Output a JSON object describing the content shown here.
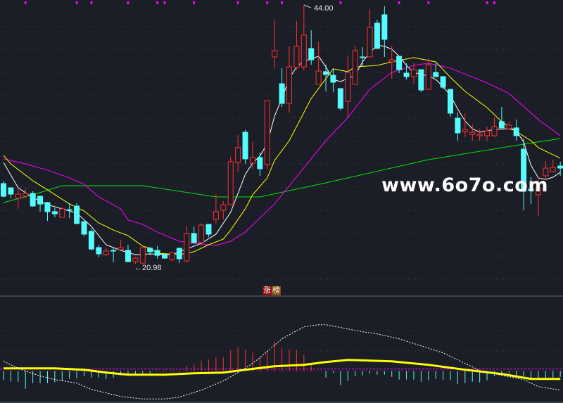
{
  "chart_data": [
    {
      "type": "candlestick",
      "title": "",
      "colors": {
        "up": "#ff3030",
        "down": "#54fcfc",
        "ma5": "#ffffff",
        "ma10": "#ffff00",
        "ma20": "#ff00ff",
        "ma60": "#00e600",
        "background": "#1b1e27"
      },
      "ylim": [
        20,
        44.4
      ],
      "grid": "horizontal dotted",
      "high_label": "44.00",
      "low_label": "←20.98",
      "high_index": 41,
      "low_index": 18,
      "badge": [
        "涨",
        "榜"
      ],
      "signal_markers": [
        3,
        10,
        12,
        17,
        21,
        22,
        26,
        32,
        36,
        38,
        46,
        54,
        58,
        66,
        67
      ],
      "ohlc": [
        [
          28.13,
          28.38,
          26.88,
          27.0
        ],
        [
          27.75,
          27.75,
          26.81,
          27.19
        ],
        [
          26.81,
          27.63,
          25.88,
          27.19
        ],
        [
          27.0,
          27.69,
          26.81,
          27.25
        ],
        [
          27.25,
          27.44,
          26.06,
          26.13
        ],
        [
          27.0,
          27.06,
          25.63,
          26.31
        ],
        [
          26.44,
          26.5,
          24.81,
          25.63
        ],
        [
          25.63,
          25.94,
          25.13,
          25.44
        ],
        [
          25.13,
          26.06,
          25.13,
          25.88
        ],
        [
          25.81,
          26.38,
          25.06,
          25.75
        ],
        [
          26.13,
          26.38,
          24.57,
          24.57
        ],
        [
          24.75,
          24.75,
          23.44,
          23.63
        ],
        [
          23.88,
          24.13,
          22.19,
          22.31
        ],
        [
          22.44,
          22.69,
          21.57,
          21.88
        ],
        [
          21.81,
          22.38,
          21.69,
          22.13
        ],
        [
          22.19,
          22.44,
          21.13,
          22.13
        ],
        [
          22.25,
          23.13,
          22.25,
          22.44
        ],
        [
          22.19,
          22.69,
          21.19,
          21.19
        ],
        [
          21.19,
          21.63,
          20.98,
          21.5
        ],
        [
          21.06,
          22.5,
          21.06,
          22.44
        ],
        [
          22.38,
          22.5,
          21.75,
          22.07
        ],
        [
          22.19,
          22.57,
          21.44,
          21.75
        ],
        [
          21.81,
          21.81,
          21.44,
          21.5
        ],
        [
          21.38,
          22.07,
          21.19,
          22.0
        ],
        [
          22.38,
          22.38,
          21.06,
          21.44
        ],
        [
          21.25,
          24.38,
          21.13,
          23.69
        ],
        [
          23.69,
          24.32,
          22.81,
          22.88
        ],
        [
          22.88,
          24.57,
          22.63,
          24.44
        ],
        [
          24.5,
          24.5,
          23.38,
          23.63
        ],
        [
          24.94,
          27.19,
          24.57,
          25.63
        ],
        [
          25.75,
          26.57,
          24.94,
          26.25
        ],
        [
          26.25,
          30.5,
          26.25,
          30.07
        ],
        [
          30.0,
          32.44,
          29.13,
          31.32
        ],
        [
          32.69,
          32.88,
          29.88,
          30.32
        ],
        [
          29.94,
          31.82,
          29.44,
          30.44
        ],
        [
          30.44,
          30.88,
          28.82,
          29.44
        ],
        [
          29.82,
          35.5,
          29.44,
          35.5
        ],
        [
          39.38,
          42.69,
          38.32,
          39.94
        ],
        [
          37.0,
          38.38,
          34.94,
          35.25
        ],
        [
          35.25,
          40.32,
          34.44,
          38.5
        ],
        [
          38.44,
          42.57,
          38.19,
          40.32
        ],
        [
          38.5,
          44.0,
          38.19,
          41.32
        ],
        [
          40.13,
          41.75,
          38.69,
          39.13
        ],
        [
          36.94,
          40.75,
          36.94,
          38.13
        ],
        [
          38.07,
          38.69,
          36.32,
          37.82
        ],
        [
          37.75,
          38.38,
          36.25,
          37.13
        ],
        [
          36.57,
          36.57,
          34.63,
          34.82
        ],
        [
          35.44,
          39.5,
          34.0,
          38.0
        ],
        [
          36.94,
          40.38,
          36.94,
          39.94
        ],
        [
          39.38,
          40.25,
          38.5,
          39.32
        ],
        [
          39.38,
          43.63,
          39.38,
          42.0
        ],
        [
          42.38,
          42.69,
          40.13,
          40.13
        ],
        [
          43.13,
          43.9,
          39.38,
          40.94
        ],
        [
          38.94,
          40.38,
          37.44,
          39.13
        ],
        [
          39.44,
          39.44,
          37.94,
          38.25
        ],
        [
          37.94,
          38.82,
          37.38,
          37.63
        ],
        [
          37.63,
          38.82,
          37.0,
          38.25
        ],
        [
          38.25,
          38.25,
          36.25,
          36.44
        ],
        [
          36.5,
          39.25,
          36.5,
          38.69
        ],
        [
          38.0,
          38.82,
          37.63,
          37.63
        ],
        [
          37.63,
          37.63,
          36.5,
          36.69
        ],
        [
          36.5,
          36.5,
          34.07,
          34.38
        ],
        [
          33.94,
          34.44,
          31.94,
          32.63
        ],
        [
          32.75,
          34.38,
          32.25,
          32.94
        ],
        [
          32.5,
          33.38,
          31.94,
          32.69
        ],
        [
          32.38,
          33.0,
          31.94,
          32.5
        ],
        [
          32.38,
          33.19,
          31.94,
          32.82
        ],
        [
          32.38,
          34.0,
          32.25,
          33.19
        ],
        [
          33.63,
          34.94,
          33.07,
          33.07
        ],
        [
          33.0,
          33.63,
          32.88,
          33.32
        ],
        [
          33.07,
          33.82,
          31.94,
          32.38
        ],
        [
          31.19,
          32.13,
          25.75,
          27.44
        ],
        [
          27.63,
          28.69,
          26.31,
          27.5
        ],
        [
          27.13,
          28.69,
          25.25,
          27.75
        ],
        [
          28.82,
          30.13,
          28.63,
          29.5
        ],
        [
          29.19,
          30.25,
          29.13,
          29.57
        ],
        [
          29.69,
          30.07,
          28.82,
          29.5
        ]
      ],
      "ma_lines": {
        "ma5": [
          [
            0,
            30.0
          ],
          [
            2,
            27.75
          ],
          [
            4,
            26.88
          ],
          [
            6,
            26.25
          ],
          [
            8,
            25.88
          ],
          [
            10,
            25.5
          ],
          [
            12,
            24.32
          ],
          [
            14,
            22.69
          ],
          [
            16,
            22.19
          ],
          [
            18,
            21.81
          ],
          [
            20,
            21.88
          ],
          [
            23,
            21.81
          ],
          [
            25,
            22.32
          ],
          [
            27,
            22.82
          ],
          [
            29,
            23.63
          ],
          [
            31,
            25.57
          ],
          [
            32,
            27.25
          ],
          [
            33,
            28.94
          ],
          [
            34,
            29.94
          ],
          [
            35,
            30.57
          ],
          [
            36,
            31.69
          ],
          [
            37,
            34.13
          ],
          [
            38,
            35.69
          ],
          [
            39,
            37.44
          ],
          [
            40,
            38.5
          ],
          [
            41,
            39.0
          ],
          [
            43,
            39.44
          ],
          [
            44,
            38.5
          ],
          [
            45,
            37.38
          ],
          [
            46,
            37.19
          ],
          [
            48,
            37.75
          ],
          [
            49,
            38.94
          ],
          [
            50,
            39.75
          ],
          [
            51,
            40.44
          ],
          [
            52,
            40.32
          ],
          [
            53,
            40.07
          ],
          [
            54,
            39.44
          ],
          [
            55,
            38.63
          ],
          [
            56,
            38.0
          ],
          [
            58,
            37.69
          ],
          [
            59,
            37.38
          ],
          [
            60,
            36.75
          ],
          [
            61,
            35.94
          ],
          [
            62,
            34.75
          ],
          [
            63,
            33.69
          ],
          [
            64,
            33.0
          ],
          [
            65,
            32.69
          ],
          [
            67,
            32.94
          ],
          [
            69,
            33.0
          ],
          [
            70,
            32.82
          ],
          [
            71,
            31.82
          ],
          [
            72,
            29.75
          ],
          [
            73,
            28.63
          ],
          [
            74,
            28.5
          ],
          [
            75,
            28.69
          ],
          [
            76,
            29.13
          ]
        ],
        "ma10": [
          [
            0,
            30.63
          ],
          [
            1,
            29.88
          ],
          [
            4,
            28.38
          ],
          [
            6,
            27.57
          ],
          [
            9,
            26.32
          ],
          [
            11,
            25.69
          ],
          [
            13,
            24.63
          ],
          [
            15,
            24.0
          ],
          [
            17,
            23.5
          ],
          [
            19,
            22.57
          ],
          [
            20,
            22.38
          ],
          [
            21,
            21.94
          ],
          [
            24,
            21.81
          ],
          [
            26,
            22.07
          ],
          [
            28,
            22.69
          ],
          [
            30,
            23.19
          ],
          [
            31,
            24.0
          ],
          [
            33,
            25.88
          ],
          [
            34,
            27.13
          ],
          [
            36,
            28.63
          ],
          [
            37,
            30.19
          ],
          [
            39,
            31.94
          ],
          [
            42,
            35.69
          ],
          [
            45,
            38.32
          ],
          [
            47,
            38.07
          ],
          [
            48,
            38.5
          ],
          [
            51,
            38.63
          ],
          [
            53,
            38.94
          ],
          [
            56,
            39.32
          ],
          [
            59,
            38.94
          ],
          [
            61,
            37.57
          ],
          [
            63,
            36.32
          ],
          [
            66,
            34.88
          ],
          [
            68,
            33.63
          ],
          [
            70,
            32.75
          ],
          [
            72,
            31.94
          ],
          [
            73,
            31.32
          ],
          [
            76,
            30.38
          ]
        ],
        "ma20": [
          [
            0,
            30.32
          ],
          [
            3,
            29.88
          ],
          [
            6,
            29.32
          ],
          [
            9,
            28.63
          ],
          [
            11,
            28.07
          ],
          [
            13,
            26.94
          ],
          [
            16,
            25.88
          ],
          [
            17,
            24.88
          ],
          [
            19,
            24.5
          ],
          [
            21,
            23.82
          ],
          [
            24,
            23.0
          ],
          [
            26,
            22.82
          ],
          [
            29,
            22.63
          ],
          [
            31,
            23.0
          ],
          [
            33,
            23.82
          ],
          [
            35,
            25.07
          ],
          [
            37,
            26.32
          ],
          [
            44,
            31.94
          ],
          [
            47,
            34.0
          ],
          [
            50,
            36.5
          ],
          [
            53,
            38.0
          ],
          [
            56,
            38.63
          ],
          [
            58,
            38.82
          ],
          [
            61,
            38.38
          ],
          [
            66,
            37.07
          ],
          [
            69,
            36.13
          ],
          [
            73,
            33.82
          ],
          [
            76,
            32.38
          ]
        ],
        "ma60": [
          [
            0,
            26.44
          ],
          [
            4,
            27.13
          ],
          [
            8,
            27.94
          ],
          [
            19,
            27.94
          ],
          [
            29,
            26.94
          ],
          [
            35,
            26.94
          ],
          [
            44,
            28.19
          ],
          [
            58,
            30.25
          ],
          [
            71,
            31.63
          ],
          [
            76,
            32.13
          ]
        ]
      }
    },
    {
      "type": "bar+line",
      "title": "",
      "colors": {
        "positive": "#ff3030",
        "negative": "#54fcfc",
        "dif": "#ffffff",
        "dea": "#ffff00",
        "reference": "#ff00ff"
      },
      "histogram": [
        -1.3,
        -1.5,
        -1.5,
        -2.5,
        -1.7,
        -1.7,
        -1.7,
        -1.6,
        -1.4,
        -1.1,
        -1.0,
        -0.7,
        -0.9,
        -0.9,
        -1.1,
        -0.9,
        -0.6,
        -0.6,
        -0.4,
        -0.3,
        -0.3,
        0.1,
        0.1,
        0.2,
        0.1,
        0.8,
        1.0,
        1.5,
        1.6,
        2.0,
        2.0,
        3.0,
        3.4,
        3.1,
        2.6,
        2.0,
        3.0,
        4.2,
        3.3,
        3.1,
        3.0,
        2.3,
        0.9,
        0.0,
        -0.9,
        -0.3,
        -2.0,
        -1.4,
        -0.7,
        -0.6,
        -0.3,
        -0.5,
        -0.5,
        -0.8,
        -1.2,
        -1.2,
        -1.2,
        -1.5,
        -1.3,
        -1.1,
        -1.2,
        -1.3,
        -1.8,
        -1.7,
        -1.5,
        -1.6,
        -1.3,
        -0.7,
        -0.6,
        -0.3,
        -0.6,
        -0.7,
        -1.2,
        -1.1,
        -1.0,
        -0.9,
        -0.8
      ],
      "dif": [
        [
          0,
          1.4
        ],
        [
          2,
          0.4
        ],
        [
          5,
          -0.7
        ],
        [
          7,
          -1.2
        ],
        [
          10,
          -1.7
        ],
        [
          12,
          -2.6
        ],
        [
          16,
          -3.6
        ],
        [
          19,
          -3.96
        ],
        [
          22,
          -3.96
        ],
        [
          24,
          -3.7
        ],
        [
          27,
          -2.7
        ],
        [
          30,
          -1.4
        ],
        [
          33,
          0.4
        ],
        [
          35,
          1.9
        ],
        [
          38,
          4.6
        ],
        [
          41,
          6.3
        ],
        [
          43,
          6.6
        ],
        [
          44,
          6.6
        ],
        [
          47,
          6.0
        ],
        [
          49,
          5.6
        ],
        [
          51,
          5.3
        ],
        [
          54,
          4.6
        ],
        [
          57,
          3.6
        ],
        [
          60,
          2.6
        ],
        [
          63,
          1.1
        ],
        [
          65,
          0.1
        ],
        [
          68,
          -0.6
        ],
        [
          71,
          -1.2
        ],
        [
          73,
          -2.2
        ],
        [
          76,
          -2.7
        ]
      ],
      "dea": [
        [
          0,
          0.4
        ],
        [
          7,
          0.4
        ],
        [
          11,
          0.2
        ],
        [
          14,
          -0.2
        ],
        [
          17,
          -0.5
        ],
        [
          22,
          -0.5
        ],
        [
          26,
          -0.3
        ],
        [
          30,
          -0.2
        ],
        [
          33,
          0.2
        ],
        [
          37,
          0.7
        ],
        [
          41,
          0.9
        ],
        [
          44,
          1.3
        ],
        [
          47,
          1.6
        ],
        [
          53,
          1.4
        ],
        [
          58,
          0.9
        ],
        [
          63,
          0.2
        ],
        [
          68,
          -0.4
        ],
        [
          72,
          -1.1
        ],
        [
          76,
          -1.1
        ]
      ],
      "reference_level": 0.3,
      "ylim": [
        -4.5,
        10.7
      ]
    }
  ],
  "watermark": "www.6o7o.com"
}
